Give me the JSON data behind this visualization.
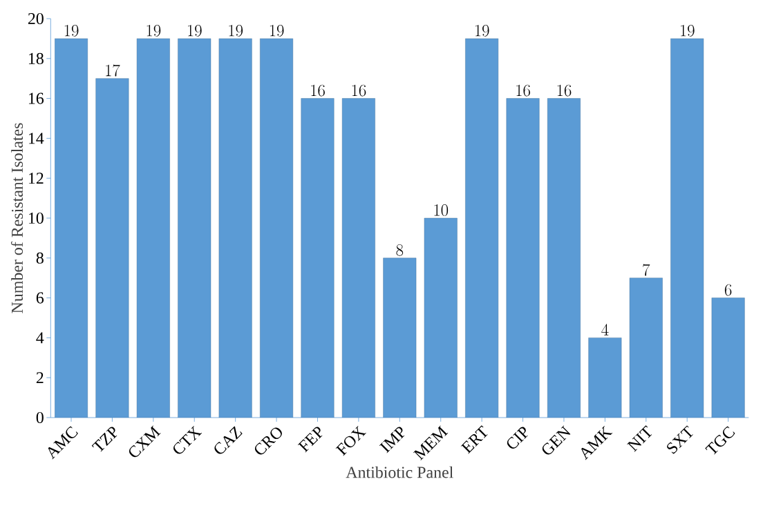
{
  "chart_data": {
    "type": "bar",
    "xlabel": "Antibiotic Panel",
    "ylabel": "Number of Resistant Isolates",
    "categories": [
      "AMC",
      "TZP",
      "CXM",
      "CTX",
      "CAZ",
      "CRO",
      "FEP",
      "FOX",
      "IMP",
      "MEM",
      "ERT",
      "CIP",
      "GEN",
      "AMK",
      "NIT",
      "SXT",
      "TGC"
    ],
    "values": [
      19,
      17,
      19,
      19,
      19,
      19,
      16,
      16,
      8,
      10,
      19,
      16,
      16,
      4,
      7,
      19,
      6
    ],
    "color": "#5b9bd5",
    "ylim": [
      0,
      20
    ],
    "yticks": [
      0,
      2,
      4,
      6,
      8,
      10,
      12,
      14,
      16,
      18,
      20
    ],
    "grid": false,
    "data_labels": true
  }
}
